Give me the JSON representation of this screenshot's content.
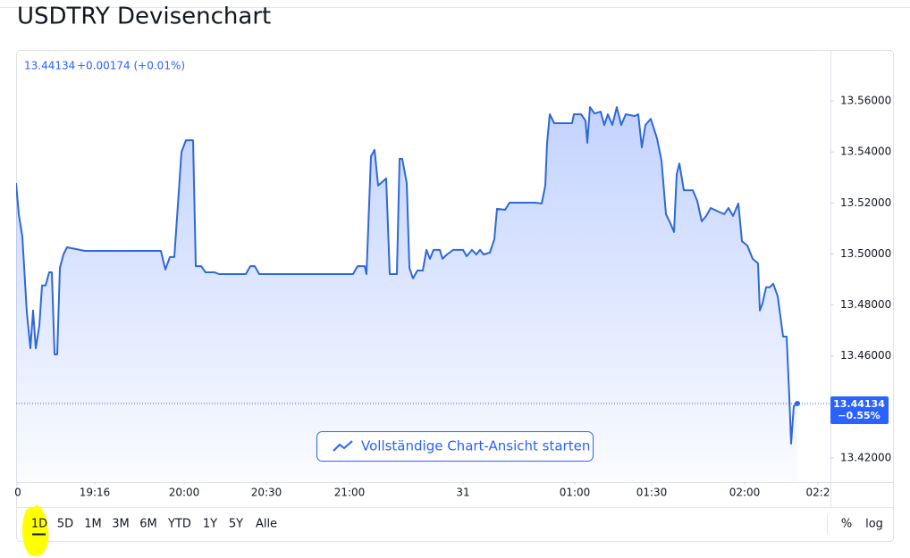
{
  "page": {
    "title": "USDTRY Devisenchart"
  },
  "chart_data": {
    "type": "area",
    "legend_change": "+0.00174 (+0.01%)",
    "last_price": {
      "value": 13.44134,
      "change": "−0.55%"
    },
    "xlim": [
      0,
      911
    ],
    "xticks": [
      {
        "value": 2,
        "label": "0"
      },
      {
        "value": 88,
        "label": "19:16"
      },
      {
        "value": 188,
        "label": "20:00"
      },
      {
        "value": 280,
        "label": "20:30"
      },
      {
        "value": 373,
        "label": "21:00"
      },
      {
        "value": 500,
        "label": "31"
      },
      {
        "value": 625,
        "label": "01:00"
      },
      {
        "value": 711,
        "label": "01:30"
      },
      {
        "value": 815,
        "label": "02:00"
      },
      {
        "value": 897,
        "label": "02:2"
      }
    ],
    "ylim": [
      13.4105,
      13.58
    ],
    "yticks": [
      {
        "value": 13.42,
        "label": "13.42000"
      },
      {
        "value": 13.46,
        "label": "13.46000"
      },
      {
        "value": 13.48,
        "label": "13.48000"
      },
      {
        "value": 13.5,
        "label": "13.50000"
      },
      {
        "value": 13.52,
        "label": "13.52000"
      },
      {
        "value": 13.54,
        "label": "13.54000"
      },
      {
        "value": 13.56,
        "label": "13.56000"
      }
    ],
    "x": [
      0,
      3,
      7,
      12,
      16,
      19,
      22,
      26,
      29,
      33,
      37,
      40,
      43,
      46,
      49,
      53,
      57,
      77,
      162,
      167,
      172,
      177,
      182,
      185,
      190,
      198,
      201,
      207,
      212,
      222,
      227,
      257,
      262,
      267,
      272,
      377,
      382,
      390,
      392,
      397,
      401,
      405,
      414,
      418,
      426,
      429,
      432,
      437,
      440,
      444,
      449,
      455,
      459,
      463,
      467,
      474,
      477,
      482,
      489,
      500,
      504,
      510,
      515,
      519,
      523,
      530,
      535,
      538,
      547,
      552,
      580,
      588,
      592,
      594,
      597,
      602,
      622,
      624,
      632,
      637,
      639,
      642,
      647,
      654,
      658,
      662,
      667,
      672,
      677,
      682,
      692,
      696,
      700,
      704,
      710,
      717,
      722,
      727,
      732,
      736,
      739,
      742,
      747,
      757,
      762,
      767,
      772,
      777,
      792,
      797,
      802,
      808,
      812,
      818,
      824,
      830,
      832,
      835,
      839,
      843,
      847,
      852,
      858,
      862,
      865,
      867,
      870,
      874
    ],
    "series": [
      {
        "color": "#2f68d8",
        "values": [
          13.5278,
          13.5156,
          13.5068,
          13.4771,
          13.463,
          13.4778,
          13.463,
          13.4718,
          13.4876,
          13.4876,
          13.4928,
          13.4928,
          13.4606,
          13.4606,
          13.4946,
          13.4998,
          13.5026,
          13.5012,
          13.5012,
          13.4939,
          13.4988,
          13.4988,
          13.5243,
          13.54,
          13.5446,
          13.5446,
          13.4952,
          13.4952,
          13.4928,
          13.4928,
          13.4921,
          13.4921,
          13.4952,
          13.4952,
          13.4921,
          13.4921,
          13.4952,
          13.4952,
          13.4921,
          13.5383,
          13.5408,
          13.5268,
          13.5296,
          13.4921,
          13.4921,
          13.5373,
          13.5373,
          13.5278,
          13.4946,
          13.4904,
          13.4935,
          13.4935,
          13.5016,
          13.4981,
          13.5016,
          13.5016,
          13.4981,
          13.4998,
          13.5016,
          13.5016,
          13.4991,
          13.5016,
          13.4998,
          13.5016,
          13.4998,
          13.5005,
          13.5058,
          13.5177,
          13.5173,
          13.5201,
          13.5201,
          13.5198,
          13.5268,
          13.5436,
          13.5548,
          13.5513,
          13.5513,
          13.5548,
          13.5548,
          13.5523,
          13.5436,
          13.5576,
          13.5551,
          13.5558,
          13.5506,
          13.5548,
          13.5506,
          13.5576,
          13.5506,
          13.5548,
          13.5541,
          13.5548,
          13.5418,
          13.5506,
          13.553,
          13.5453,
          13.5366,
          13.5156,
          13.512,
          13.5086,
          13.5313,
          13.5355,
          13.525,
          13.525,
          13.5208,
          13.5128,
          13.5149,
          13.518,
          13.5156,
          13.518,
          13.5149,
          13.5198,
          13.505,
          13.5033,
          13.4981,
          13.4963,
          13.4778,
          13.4806,
          13.4869,
          13.4869,
          13.4883,
          13.4834,
          13.4676,
          13.4676,
          13.4438,
          13.4256,
          13.4403,
          13.44134
        ]
      }
    ]
  },
  "controls": {
    "button": "Vollständige Chart-Ansicht starten",
    "ranges": [
      "1D",
      "5D",
      "1M",
      "3M",
      "6M",
      "YTD",
      "1Y",
      "5Y",
      "Alle"
    ],
    "scale": [
      "%",
      "log"
    ]
  }
}
